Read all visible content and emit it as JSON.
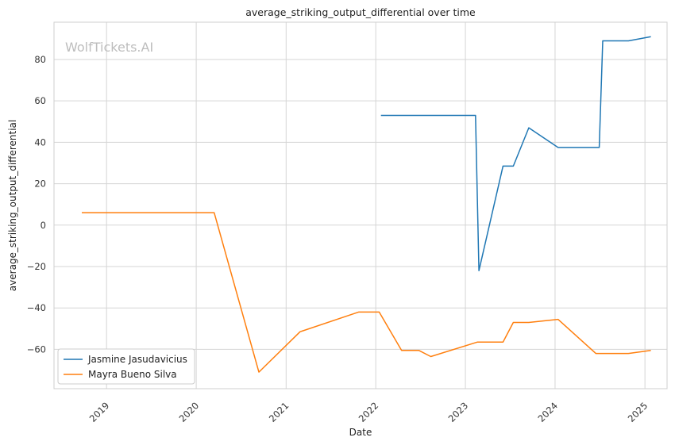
{
  "chart_data": {
    "type": "line",
    "title": "average_striking_output_differential over time",
    "xlabel": "Date",
    "ylabel": "average_striking_output_differential",
    "watermark": "WolfTickets.AI",
    "x_ticks": [
      "2019",
      "2020",
      "2021",
      "2022",
      "2023",
      "2024",
      "2025"
    ],
    "y_ticks": [
      -60,
      -40,
      -20,
      0,
      20,
      40,
      60,
      80
    ],
    "xlim": [
      "2018-06-01",
      "2025-04-01"
    ],
    "ylim": [
      -79,
      98
    ],
    "grid": true,
    "legend_position": "lower-left",
    "series": [
      {
        "name": "Jasmine Jasudavicius",
        "color": "#1f77b4",
        "points": [
          [
            "2022-01-22",
            53
          ],
          [
            "2023-02-11",
            53
          ],
          [
            "2023-02-25",
            -22
          ],
          [
            "2023-06-03",
            28.5
          ],
          [
            "2023-07-15",
            28.5
          ],
          [
            "2023-09-16",
            47
          ],
          [
            "2024-01-13",
            37.5
          ],
          [
            "2024-06-29",
            37.5
          ],
          [
            "2024-07-13",
            89
          ],
          [
            "2024-10-26",
            89
          ],
          [
            "2025-01-25",
            91
          ]
        ]
      },
      {
        "name": "Mayra Bueno Silva",
        "color": "#ff7f0e",
        "points": [
          [
            "2018-09-22",
            6
          ],
          [
            "2020-03-14",
            6
          ],
          [
            "2020-09-12",
            -71
          ],
          [
            "2021-02-27",
            -51.5
          ],
          [
            "2021-10-23",
            -42
          ],
          [
            "2022-01-15",
            -42
          ],
          [
            "2022-04-16",
            -60.5
          ],
          [
            "2022-06-25",
            -60.5
          ],
          [
            "2022-08-13",
            -63.5
          ],
          [
            "2023-02-18",
            -56.5
          ],
          [
            "2023-06-03",
            -56.5
          ],
          [
            "2023-07-15",
            -47
          ],
          [
            "2023-09-16",
            -47
          ],
          [
            "2024-01-13",
            -45.5
          ],
          [
            "2024-06-15",
            -62
          ],
          [
            "2024-10-26",
            -62
          ],
          [
            "2025-01-25",
            -60.5
          ]
        ]
      }
    ]
  }
}
